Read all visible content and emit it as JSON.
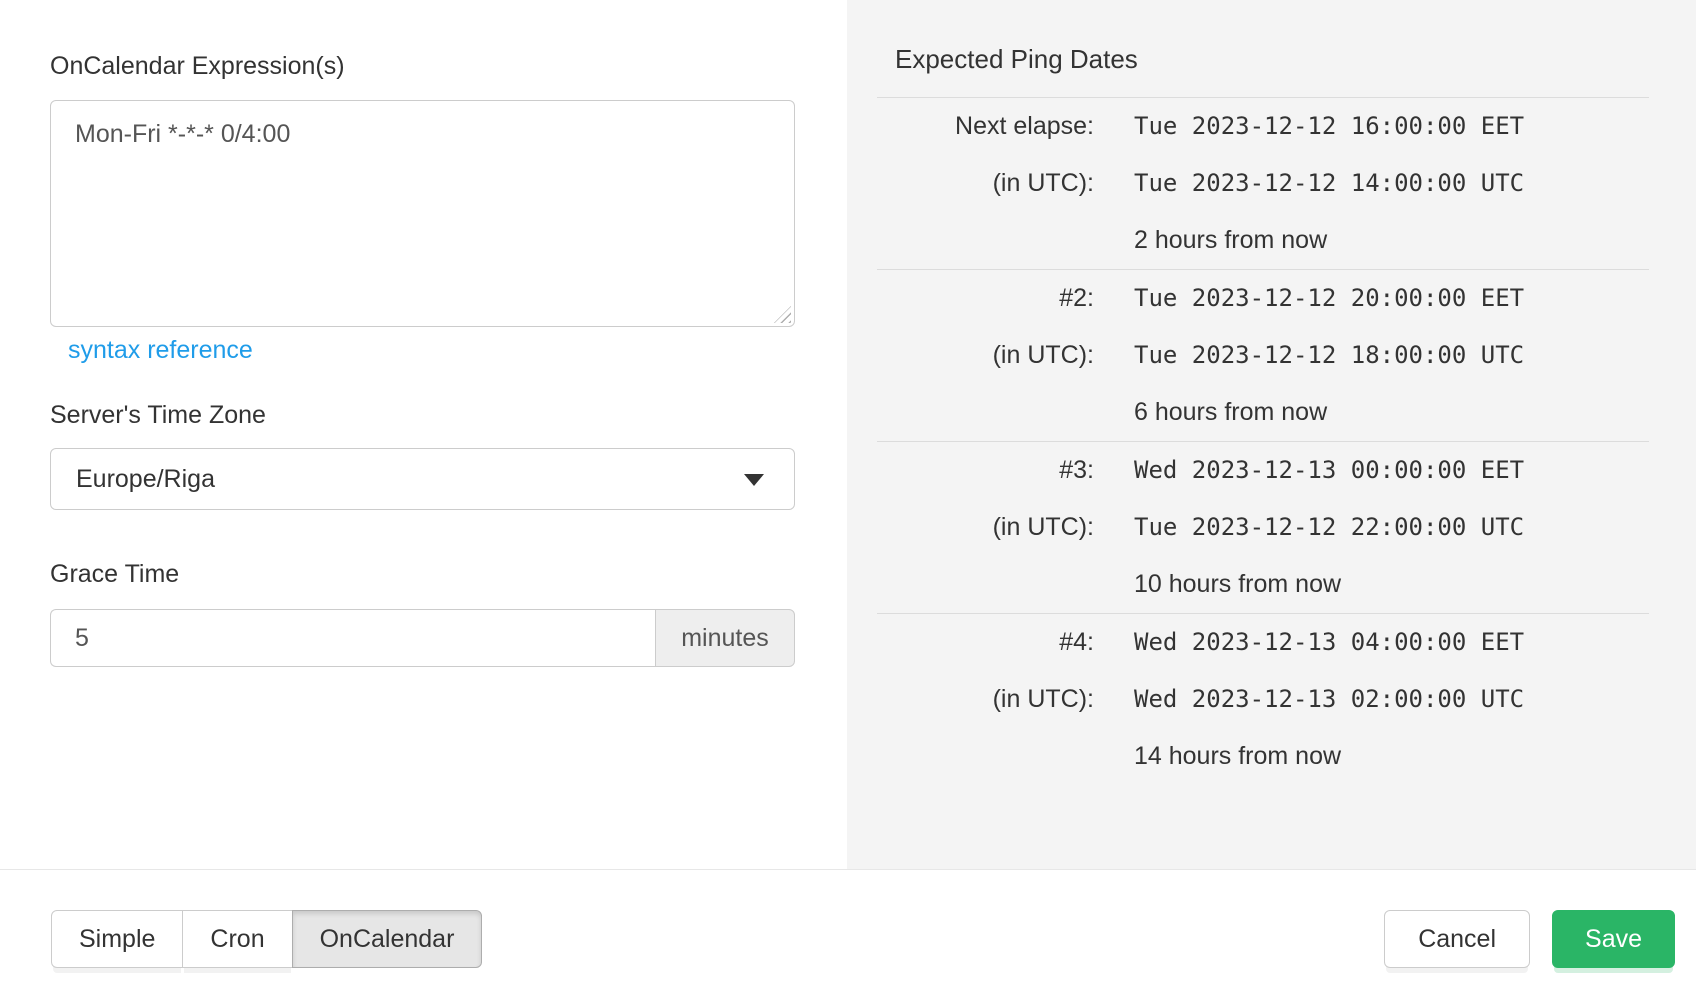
{
  "form": {
    "expression_label": "OnCalendar Expression(s)",
    "expression_value": "Mon-Fri *-*-* 0/4:00",
    "syntax_reference_label": "syntax reference",
    "timezone_label": "Server's Time Zone",
    "timezone_value": "Europe/Riga",
    "grace_label": "Grace Time",
    "grace_value": "5",
    "grace_unit": "minutes"
  },
  "panel": {
    "title": "Expected Ping Dates",
    "utc_label": "(in UTC):",
    "rows": [
      {
        "label": "Next elapse:",
        "eet": "Tue 2023-12-12 16:00:00 EET",
        "utc": "Tue 2023-12-12 14:00:00 UTC",
        "relative": "2 hours from now"
      },
      {
        "label": "#2:",
        "eet": "Tue 2023-12-12 20:00:00 EET",
        "utc": "Tue 2023-12-12 18:00:00 UTC",
        "relative": "6 hours from now"
      },
      {
        "label": "#3:",
        "eet": "Wed 2023-12-13 00:00:00 EET",
        "utc": "Tue 2023-12-12 22:00:00 UTC",
        "relative": "10 hours from now"
      },
      {
        "label": "#4:",
        "eet": "Wed 2023-12-13 04:00:00 EET",
        "utc": "Wed 2023-12-13 02:00:00 UTC",
        "relative": "14 hours from now"
      }
    ]
  },
  "footer": {
    "mode_buttons": [
      {
        "label": "Simple",
        "active": false
      },
      {
        "label": "Cron",
        "active": false
      },
      {
        "label": "OnCalendar",
        "active": true
      }
    ],
    "cancel_label": "Cancel",
    "save_label": "Save"
  },
  "colors": {
    "accent_green": "#2ab566",
    "link_blue": "#1f9ce9",
    "panel_bg": "#f4f4f4",
    "active_button_bg": "#e6e6e6",
    "input_border": "#cccccc",
    "divider": "#dcdcdc"
  }
}
